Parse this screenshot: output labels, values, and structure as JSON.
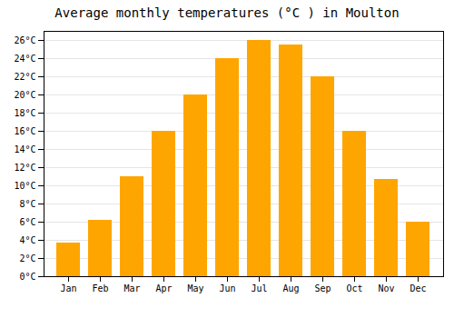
{
  "chart_data": {
    "type": "bar",
    "title": "Average monthly temperatures (°C ) in Moulton",
    "categories": [
      "Jan",
      "Feb",
      "Mar",
      "Apr",
      "May",
      "Jun",
      "Jul",
      "Aug",
      "Sep",
      "Oct",
      "Nov",
      "Dec"
    ],
    "values": [
      3.7,
      6.2,
      11.0,
      16.0,
      20.0,
      24.0,
      26.0,
      25.5,
      22.0,
      16.0,
      10.7,
      6.0
    ],
    "color": "#FFA500",
    "ylim": [
      0,
      27
    ],
    "yticks": [
      {
        "value": 0,
        "label": "0°C"
      },
      {
        "value": 2,
        "label": "2°C"
      },
      {
        "value": 4,
        "label": "4°C"
      },
      {
        "value": 6,
        "label": "6°C"
      },
      {
        "value": 8,
        "label": "8°C"
      },
      {
        "value": 10,
        "label": "10°C"
      },
      {
        "value": 12,
        "label": "12°C"
      },
      {
        "value": 14,
        "label": "14°C"
      },
      {
        "value": 16,
        "label": "16°C"
      },
      {
        "value": 18,
        "label": "18°C"
      },
      {
        "value": 20,
        "label": "20°C"
      },
      {
        "value": 22,
        "label": "22°C"
      },
      {
        "value": 24,
        "label": "24°C"
      },
      {
        "value": 26,
        "label": "26°C"
      }
    ],
    "grid": true
  }
}
